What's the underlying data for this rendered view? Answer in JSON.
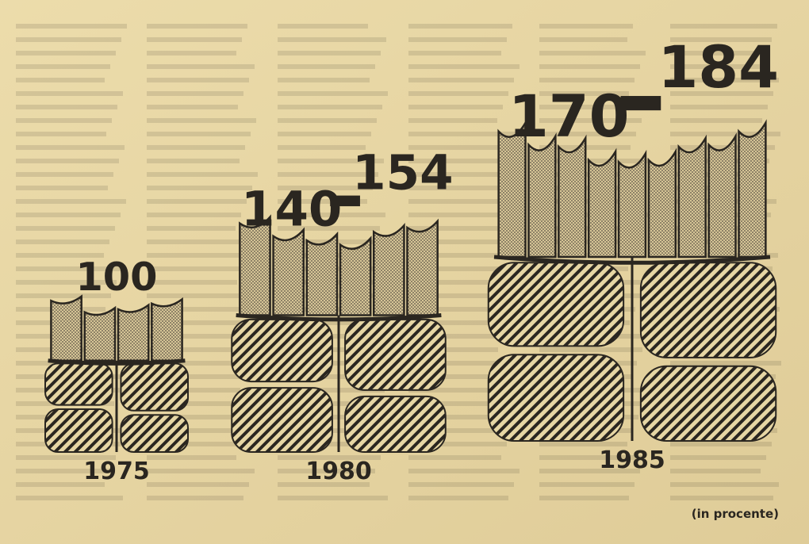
{
  "chart_data": {
    "type": "pictogram",
    "categories": [
      "1975",
      "1980",
      "1985"
    ],
    "low": [
      100,
      140,
      170
    ],
    "high": [
      null,
      154,
      184
    ],
    "note": "(in procente)",
    "color": "#2a2620"
  }
}
